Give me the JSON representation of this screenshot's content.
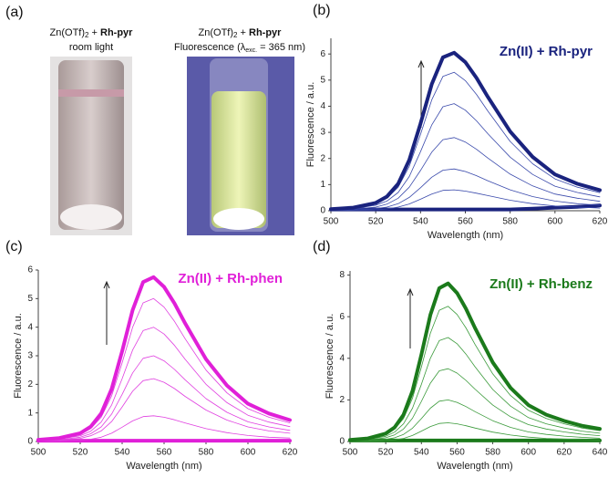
{
  "panel_a": {
    "label": "(a)",
    "photos": [
      {
        "line1": {
          "prefix": "Zn(OTf)",
          "sub": "2",
          "mid": " + ",
          "bold": "Rh-pyr"
        },
        "line2": {
          "text": "room light"
        }
      },
      {
        "line1": {
          "prefix": "Zn(OTf)",
          "sub": "2",
          "mid": " + ",
          "bold": "Rh-pyr"
        },
        "line2": {
          "text": "Fluorescence (λ",
          "sub": "exc.",
          "tail": " = 365 nm)"
        }
      }
    ]
  },
  "chart_data": [
    {
      "type": "line",
      "label": "(b)",
      "annotation": "Zn(II) + Rh-pyr",
      "annotation_color": "#1a237e",
      "x_label": "Wavelength (nm)",
      "y_label": "Fluorescence / a.u.",
      "xlim": [
        500,
        620
      ],
      "xticks": [
        500,
        520,
        540,
        560,
        580,
        600,
        620
      ],
      "ylim": [
        0,
        6.6
      ],
      "yticks": [
        0,
        1,
        2,
        3,
        4,
        5,
        6
      ],
      "x": [
        500,
        510,
        520,
        525,
        530,
        535,
        540,
        545,
        550,
        555,
        560,
        565,
        570,
        580,
        590,
        600,
        610,
        620
      ],
      "series": [
        {
          "color": "#1a237e",
          "linewidth": 4,
          "values": [
            0.05,
            0.05,
            0.05,
            0.05,
            0.05,
            0.05,
            0.05,
            0.05,
            0.05,
            0.05,
            0.05,
            0.05,
            0.05,
            0.05,
            0.08,
            0.12,
            0.15,
            0.2
          ]
        },
        {
          "color": "#3949ab",
          "linewidth": 0.8,
          "values": [
            0.01,
            0.02,
            0.04,
            0.07,
            0.14,
            0.26,
            0.44,
            0.64,
            0.78,
            0.8,
            0.75,
            0.67,
            0.58,
            0.4,
            0.27,
            0.18,
            0.14,
            0.1
          ]
        },
        {
          "color": "#3949ab",
          "linewidth": 0.8,
          "values": [
            0.02,
            0.03,
            0.08,
            0.14,
            0.27,
            0.51,
            0.88,
            1.28,
            1.55,
            1.6,
            1.5,
            1.34,
            1.15,
            0.8,
            0.54,
            0.37,
            0.27,
            0.21
          ]
        },
        {
          "color": "#3949ab",
          "linewidth": 0.8,
          "values": [
            0.03,
            0.06,
            0.14,
            0.25,
            0.48,
            0.9,
            1.54,
            2.24,
            2.72,
            2.8,
            2.63,
            2.35,
            2.02,
            1.4,
            0.95,
            0.64,
            0.48,
            0.36
          ]
        },
        {
          "color": "#3949ab",
          "linewidth": 0.8,
          "values": [
            0.04,
            0.08,
            0.21,
            0.37,
            0.7,
            1.31,
            2.26,
            3.28,
            3.98,
            4.1,
            3.85,
            3.44,
            2.95,
            2.05,
            1.39,
            0.94,
            0.7,
            0.53
          ]
        },
        {
          "color": "#3949ab",
          "linewidth": 0.8,
          "values": [
            0.05,
            0.11,
            0.27,
            0.48,
            0.9,
            1.7,
            2.92,
            4.24,
            5.14,
            5.3,
            4.98,
            4.45,
            3.82,
            2.65,
            1.8,
            1.22,
            0.9,
            0.69
          ]
        },
        {
          "color": "#1a237e",
          "linewidth": 4,
          "values": [
            0.06,
            0.12,
            0.3,
            0.54,
            1.03,
            1.94,
            3.33,
            4.84,
            5.87,
            6.05,
            5.69,
            5.08,
            4.36,
            3.03,
            2.06,
            1.39,
            1.03,
            0.79
          ]
        }
      ]
    },
    {
      "type": "line",
      "label": "(c)",
      "annotation": "Zn(II) + Rh-phen",
      "annotation_color": "#e020d8",
      "x_label": "Wavelength (nm)",
      "y_label": "Fluorescence / a.u.",
      "xlim": [
        500,
        620
      ],
      "xticks": [
        500,
        520,
        540,
        560,
        580,
        600,
        620
      ],
      "ylim": [
        0,
        6
      ],
      "yticks": [
        0,
        1,
        2,
        3,
        4,
        5,
        6
      ],
      "x": [
        500,
        510,
        520,
        525,
        530,
        535,
        540,
        545,
        550,
        555,
        560,
        565,
        570,
        580,
        590,
        600,
        610,
        620
      ],
      "series": [
        {
          "color": "#e020d8",
          "linewidth": 4,
          "values": [
            0.03,
            0.03,
            0.03,
            0.03,
            0.03,
            0.03,
            0.03,
            0.03,
            0.03,
            0.03,
            0.03,
            0.03,
            0.03,
            0.03,
            0.03,
            0.03,
            0.03,
            0.03
          ]
        },
        {
          "color": "#e040e0",
          "linewidth": 0.8,
          "values": [
            0.01,
            0.02,
            0.05,
            0.08,
            0.15,
            0.29,
            0.5,
            0.72,
            0.87,
            0.9,
            0.85,
            0.76,
            0.65,
            0.45,
            0.31,
            0.21,
            0.15,
            0.12
          ]
        },
        {
          "color": "#e040e0",
          "linewidth": 0.8,
          "values": [
            0.02,
            0.04,
            0.11,
            0.2,
            0.37,
            0.7,
            1.21,
            1.76,
            2.13,
            2.2,
            2.07,
            1.85,
            1.58,
            1.1,
            0.75,
            0.51,
            0.37,
            0.29
          ]
        },
        {
          "color": "#e040e0",
          "linewidth": 0.8,
          "values": [
            0.03,
            0.06,
            0.15,
            0.27,
            0.51,
            0.96,
            1.65,
            2.4,
            2.91,
            3.0,
            2.82,
            2.52,
            2.16,
            1.5,
            1.02,
            0.69,
            0.51,
            0.39
          ]
        },
        {
          "color": "#e040e0",
          "linewidth": 0.8,
          "values": [
            0.04,
            0.08,
            0.2,
            0.36,
            0.68,
            1.28,
            2.2,
            3.2,
            3.88,
            4.0,
            3.76,
            3.36,
            2.88,
            2.0,
            1.36,
            0.92,
            0.68,
            0.52
          ]
        },
        {
          "color": "#e040e0",
          "linewidth": 0.8,
          "values": [
            0.05,
            0.1,
            0.25,
            0.45,
            0.85,
            1.6,
            2.75,
            4.0,
            4.85,
            5.0,
            4.7,
            4.2,
            3.6,
            2.5,
            1.7,
            1.15,
            0.85,
            0.65
          ]
        },
        {
          "color": "#e020d8",
          "linewidth": 4,
          "values": [
            0.06,
            0.12,
            0.29,
            0.52,
            0.98,
            1.84,
            3.16,
            4.6,
            5.58,
            5.75,
            5.41,
            4.83,
            4.14,
            2.88,
            1.96,
            1.32,
            0.98,
            0.75
          ]
        }
      ]
    },
    {
      "type": "line",
      "label": "(d)",
      "annotation": "Zn(II) + Rh-benz",
      "annotation_color": "#1b7a1b",
      "x_label": "Wavelength (nm)",
      "y_label": "Fluorescence / a.u.",
      "xlim": [
        500,
        640
      ],
      "xticks": [
        500,
        520,
        540,
        560,
        580,
        600,
        620,
        640
      ],
      "ylim": [
        0,
        8.2
      ],
      "yticks": [
        0,
        2,
        4,
        6,
        8
      ],
      "x": [
        500,
        510,
        520,
        525,
        530,
        535,
        540,
        545,
        550,
        555,
        560,
        565,
        570,
        580,
        590,
        600,
        610,
        620,
        630,
        640
      ],
      "series": [
        {
          "color": "#1b7a1b",
          "linewidth": 4,
          "values": [
            0.05,
            0.05,
            0.05,
            0.05,
            0.05,
            0.05,
            0.05,
            0.05,
            0.05,
            0.05,
            0.05,
            0.05,
            0.05,
            0.05,
            0.05,
            0.05,
            0.05,
            0.05,
            0.05,
            0.05
          ]
        },
        {
          "color": "#3a9a3a",
          "linewidth": 0.8,
          "values": [
            0.01,
            0.02,
            0.05,
            0.08,
            0.15,
            0.29,
            0.5,
            0.72,
            0.87,
            0.9,
            0.85,
            0.76,
            0.65,
            0.45,
            0.31,
            0.21,
            0.15,
            0.12,
            0.09,
            0.07
          ]
        },
        {
          "color": "#3a9a3a",
          "linewidth": 0.8,
          "values": [
            0.02,
            0.04,
            0.1,
            0.18,
            0.34,
            0.64,
            1.1,
            1.6,
            1.94,
            2.0,
            1.88,
            1.68,
            1.44,
            1.0,
            0.68,
            0.46,
            0.34,
            0.26,
            0.2,
            0.16
          ]
        },
        {
          "color": "#3a9a3a",
          "linewidth": 0.8,
          "values": [
            0.04,
            0.07,
            0.18,
            0.32,
            0.6,
            1.12,
            1.93,
            2.8,
            3.4,
            3.5,
            3.29,
            2.94,
            2.52,
            1.75,
            1.19,
            0.81,
            0.6,
            0.46,
            0.35,
            0.28
          ]
        },
        {
          "color": "#3a9a3a",
          "linewidth": 0.8,
          "values": [
            0.05,
            0.1,
            0.25,
            0.45,
            0.85,
            1.6,
            2.75,
            4.0,
            4.85,
            5.0,
            4.7,
            4.2,
            3.6,
            2.5,
            1.7,
            1.15,
            0.85,
            0.65,
            0.5,
            0.4
          ]
        },
        {
          "color": "#3a9a3a",
          "linewidth": 0.8,
          "values": [
            0.07,
            0.13,
            0.33,
            0.59,
            1.11,
            2.08,
            3.58,
            5.2,
            6.31,
            6.5,
            6.11,
            5.46,
            4.68,
            3.25,
            2.21,
            1.5,
            1.11,
            0.85,
            0.65,
            0.52
          ]
        },
        {
          "color": "#1b7a1b",
          "linewidth": 4,
          "values": [
            0.08,
            0.15,
            0.38,
            0.68,
            1.29,
            2.43,
            4.18,
            6.08,
            7.37,
            7.6,
            7.14,
            6.38,
            5.47,
            3.8,
            2.58,
            1.75,
            1.29,
            0.99,
            0.76,
            0.61
          ]
        }
      ]
    }
  ]
}
